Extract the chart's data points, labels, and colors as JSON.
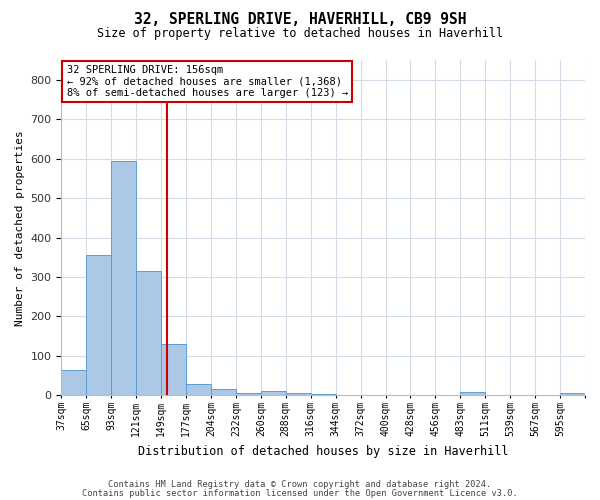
{
  "title": "32, SPERLING DRIVE, HAVERHILL, CB9 9SH",
  "subtitle": "Size of property relative to detached houses in Haverhill",
  "xlabel": "Distribution of detached houses by size in Haverhill",
  "ylabel": "Number of detached properties",
  "bin_labels": [
    "37sqm",
    "65sqm",
    "93sqm",
    "121sqm",
    "149sqm",
    "177sqm",
    "204sqm",
    "232sqm",
    "260sqm",
    "288sqm",
    "316sqm",
    "344sqm",
    "372sqm",
    "400sqm",
    "428sqm",
    "456sqm",
    "483sqm",
    "511sqm",
    "539sqm",
    "567sqm",
    "595sqm"
  ],
  "bar_values": [
    65,
    355,
    595,
    315,
    130,
    28,
    15,
    5,
    10,
    5,
    3,
    2,
    2,
    2,
    1,
    0,
    8,
    1,
    0,
    1,
    5
  ],
  "bar_color": "#adc8e6",
  "bar_edge_color": "#5a9fd4",
  "vline_x_bar_index": 4.25,
  "vline_color": "#cc0000",
  "annotation_text": "32 SPERLING DRIVE: 156sqm\n← 92% of detached houses are smaller (1,368)\n8% of semi-detached houses are larger (123) →",
  "annotation_box_color": "#ffffff",
  "annotation_box_edge_color": "#cc0000",
  "ylim": [
    0,
    850
  ],
  "yticks": [
    0,
    100,
    200,
    300,
    400,
    500,
    600,
    700,
    800
  ],
  "footer_line1": "Contains HM Land Registry data © Crown copyright and database right 2024.",
  "footer_line2": "Contains public sector information licensed under the Open Government Licence v3.0.",
  "bg_color": "#ffffff",
  "grid_color": "#d4dce8"
}
